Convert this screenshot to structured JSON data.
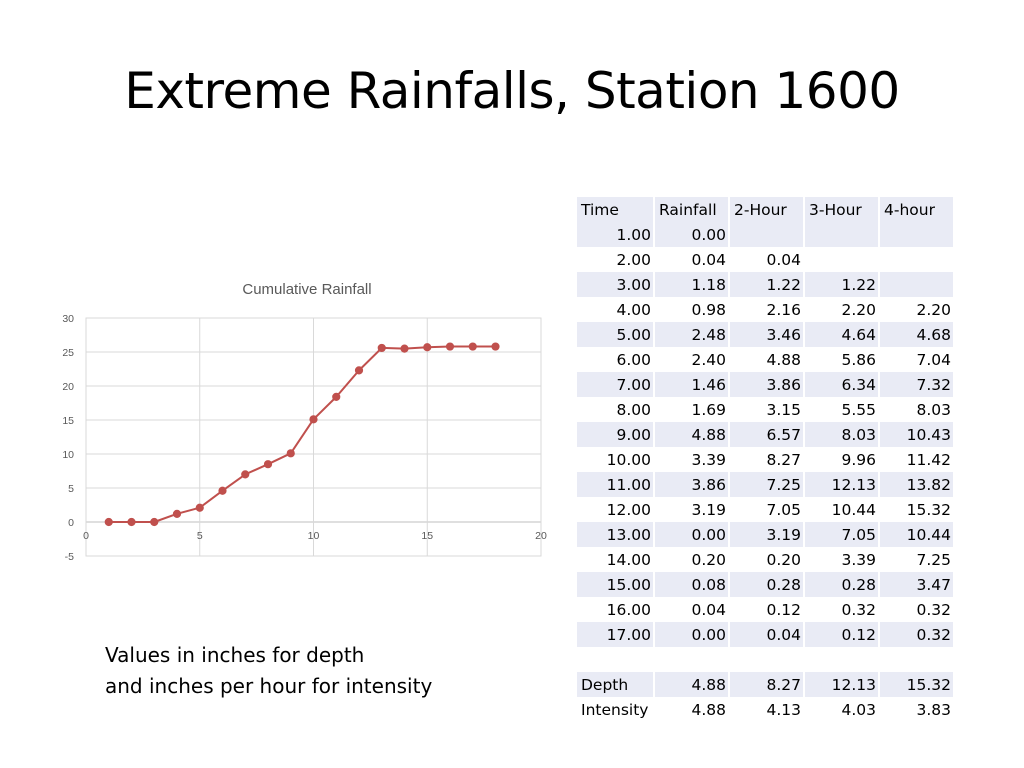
{
  "slide": {
    "title": "Extreme Rainfalls, Station 1600",
    "note_lines": [
      "Values in inches for depth",
      "and inches per hour for intensity"
    ]
  },
  "chart_data": {
    "type": "line",
    "title": "Cumulative Rainfall",
    "xlabel": "",
    "ylabel": "",
    "xlim": [
      0,
      20
    ],
    "ylim": [
      -5,
      30
    ],
    "x_ticks": [
      0,
      5,
      10,
      15,
      20
    ],
    "y_ticks": [
      -5,
      0,
      5,
      10,
      15,
      20,
      25,
      30
    ],
    "grid": true,
    "legend": "none",
    "color": "#c0504d",
    "series": [
      {
        "x": [
          1,
          2,
          3,
          4,
          5,
          6,
          7,
          8,
          9,
          10,
          11,
          12,
          13,
          14,
          15,
          16,
          17,
          18
        ],
        "values": [
          0,
          0,
          0,
          1.2,
          2.1,
          4.6,
          7.0,
          8.5,
          10.1,
          15.1,
          18.4,
          22.3,
          25.6,
          25.5,
          25.7,
          25.8,
          25.8,
          25.8
        ]
      }
    ]
  },
  "table": {
    "headers": [
      "Time",
      "Rainfall",
      "2-Hour",
      "3-Hour",
      "4-hour"
    ],
    "rows": [
      [
        "1.00",
        "0.00",
        "",
        "",
        ""
      ],
      [
        "2.00",
        "0.04",
        "0.04",
        "",
        ""
      ],
      [
        "3.00",
        "1.18",
        "1.22",
        "1.22",
        ""
      ],
      [
        "4.00",
        "0.98",
        "2.16",
        "2.20",
        "2.20"
      ],
      [
        "5.00",
        "2.48",
        "3.46",
        "4.64",
        "4.68"
      ],
      [
        "6.00",
        "2.40",
        "4.88",
        "5.86",
        "7.04"
      ],
      [
        "7.00",
        "1.46",
        "3.86",
        "6.34",
        "7.32"
      ],
      [
        "8.00",
        "1.69",
        "3.15",
        "5.55",
        "8.03"
      ],
      [
        "9.00",
        "4.88",
        "6.57",
        "8.03",
        "10.43"
      ],
      [
        "10.00",
        "3.39",
        "8.27",
        "9.96",
        "11.42"
      ],
      [
        "11.00",
        "3.86",
        "7.25",
        "12.13",
        "13.82"
      ],
      [
        "12.00",
        "3.19",
        "7.05",
        "10.44",
        "15.32"
      ],
      [
        "13.00",
        "0.00",
        "3.19",
        "7.05",
        "10.44"
      ],
      [
        "14.00",
        "0.20",
        "0.20",
        "3.39",
        "7.25"
      ],
      [
        "15.00",
        "0.08",
        "0.28",
        "0.28",
        "3.47"
      ],
      [
        "16.00",
        "0.04",
        "0.12",
        "0.32",
        "0.32"
      ],
      [
        "17.00",
        "0.00",
        "0.04",
        "0.12",
        "0.32"
      ],
      [
        "",
        "",
        "",
        "",
        ""
      ],
      [
        "Depth",
        "4.88",
        "8.27",
        "12.13",
        "15.32"
      ],
      [
        "Intensity",
        "4.88",
        "4.13",
        "4.03",
        "3.83"
      ]
    ]
  }
}
